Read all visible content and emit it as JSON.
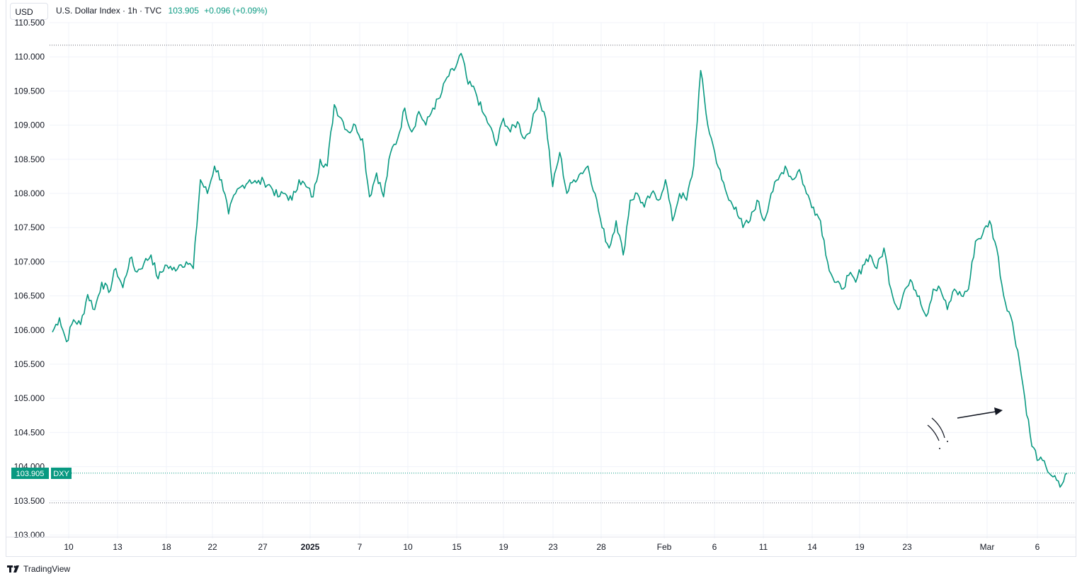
{
  "header": {
    "currency_button": "USD",
    "title": "U.S. Dollar Index · 1h · TVC",
    "last_value": "103.905",
    "change": "+0.096 (+0.09%)"
  },
  "price_label": {
    "value": "103.905",
    "symbol": "DXY"
  },
  "brand": {
    "name": "TradingView",
    "icon": "tradingview-logo-icon"
  },
  "colors": {
    "line": "#089981",
    "grid": "#f0f3fa",
    "text": "#131722",
    "accent": "#089981"
  },
  "chart_data": {
    "type": "line",
    "title": "U.S. Dollar Index · 1h · TVC",
    "xlabel": "",
    "ylabel": "",
    "ylim": [
      103.0,
      110.5
    ],
    "grid": true,
    "y_ticks": [
      "110.500",
      "110.000",
      "109.500",
      "109.000",
      "108.500",
      "108.000",
      "107.500",
      "107.000",
      "106.500",
      "106.000",
      "105.500",
      "105.000",
      "104.500",
      "104.000",
      "103.500",
      "103.000"
    ],
    "x_ticks": [
      "10",
      "13",
      "18",
      "22",
      "27",
      "2025",
      "7",
      "10",
      "15",
      "19",
      "23",
      "28",
      "Feb",
      "6",
      "11",
      "14",
      "19",
      "23",
      "Mar",
      "6"
    ],
    "reference_lines": [
      110.17,
      103.905,
      103.47
    ],
    "series": [
      {
        "values": [
          105.97,
          106.18,
          105.83,
          106.15,
          106.08,
          106.52,
          106.3,
          106.7,
          106.55,
          106.9,
          106.62,
          107.05,
          106.85,
          106.98,
          107.1,
          106.75,
          106.95,
          106.88,
          106.95,
          107.0,
          106.9,
          108.2,
          108.0,
          108.4,
          108.2,
          107.7,
          108.0,
          108.12,
          108.2,
          108.15,
          108.18,
          108.1,
          107.95,
          108.0,
          107.9,
          108.2,
          108.1,
          107.95,
          108.5,
          108.4,
          109.3,
          109.1,
          108.9,
          109.0,
          108.8,
          107.95,
          108.3,
          107.95,
          108.6,
          108.8,
          109.25,
          108.9,
          109.2,
          109.0,
          109.25,
          109.4,
          109.7,
          109.8,
          110.05,
          109.6,
          109.5,
          109.2,
          109.0,
          108.7,
          109.1,
          108.9,
          109.05,
          108.8,
          109.0,
          109.4,
          109.1,
          108.1,
          108.6,
          108.0,
          108.2,
          108.3,
          108.4,
          108.0,
          107.5,
          107.2,
          107.6,
          107.1,
          107.9,
          108.0,
          107.8,
          108.0,
          107.9,
          108.2,
          107.6,
          108.0,
          107.9,
          108.4,
          109.8,
          109.0,
          108.6,
          108.2,
          107.9,
          107.8,
          107.5,
          107.6,
          107.9,
          107.6,
          108.0,
          108.2,
          108.4,
          108.2,
          108.35,
          108.0,
          107.8,
          107.6,
          107.0,
          106.7,
          106.6,
          106.8,
          106.7,
          106.95,
          107.1,
          106.9,
          107.2,
          106.6,
          106.3,
          106.6,
          106.7,
          106.5,
          106.2,
          106.6,
          106.6,
          106.3,
          106.6,
          106.5,
          106.6,
          107.3,
          107.4,
          107.6,
          107.2,
          106.5,
          106.2,
          105.7,
          105.0,
          104.3,
          104.1,
          104.0,
          103.85,
          103.7,
          103.9
        ]
      }
    ]
  }
}
